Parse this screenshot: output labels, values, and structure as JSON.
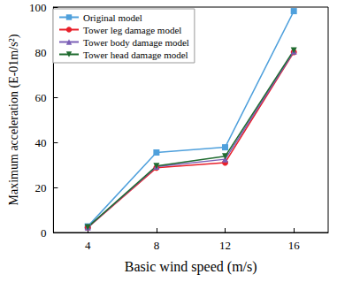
{
  "chart_data": {
    "type": "line",
    "x_label": "Basic wind speed (m/s)",
    "y_label": "Maximum acceleration (E-01m/s²)",
    "categories": [
      "4",
      "8",
      "12",
      "16"
    ],
    "ylim": [
      0,
      100
    ],
    "yticks": [
      0,
      20,
      40,
      60,
      80,
      100
    ],
    "grid": false,
    "legend": "upper left",
    "series": [
      {
        "name": "Original model",
        "color": "#4fa0dc",
        "marker": "square",
        "values": [
          2.7,
          35.5,
          37.8,
          98.2
        ]
      },
      {
        "name": "Tower leg damage model",
        "color": "#e8202a",
        "marker": "circle",
        "values": [
          2.2,
          28.7,
          31.0,
          80.0
        ]
      },
      {
        "name": "Tower body damage model",
        "color": "#7a5fb6",
        "marker": "triangle",
        "values": [
          2.3,
          29.2,
          32.5,
          80.3
        ]
      },
      {
        "name": "Tower head damage model",
        "color": "#1f6b2f",
        "marker": "triangle-down",
        "values": [
          2.4,
          29.5,
          33.8,
          80.8
        ]
      }
    ]
  }
}
